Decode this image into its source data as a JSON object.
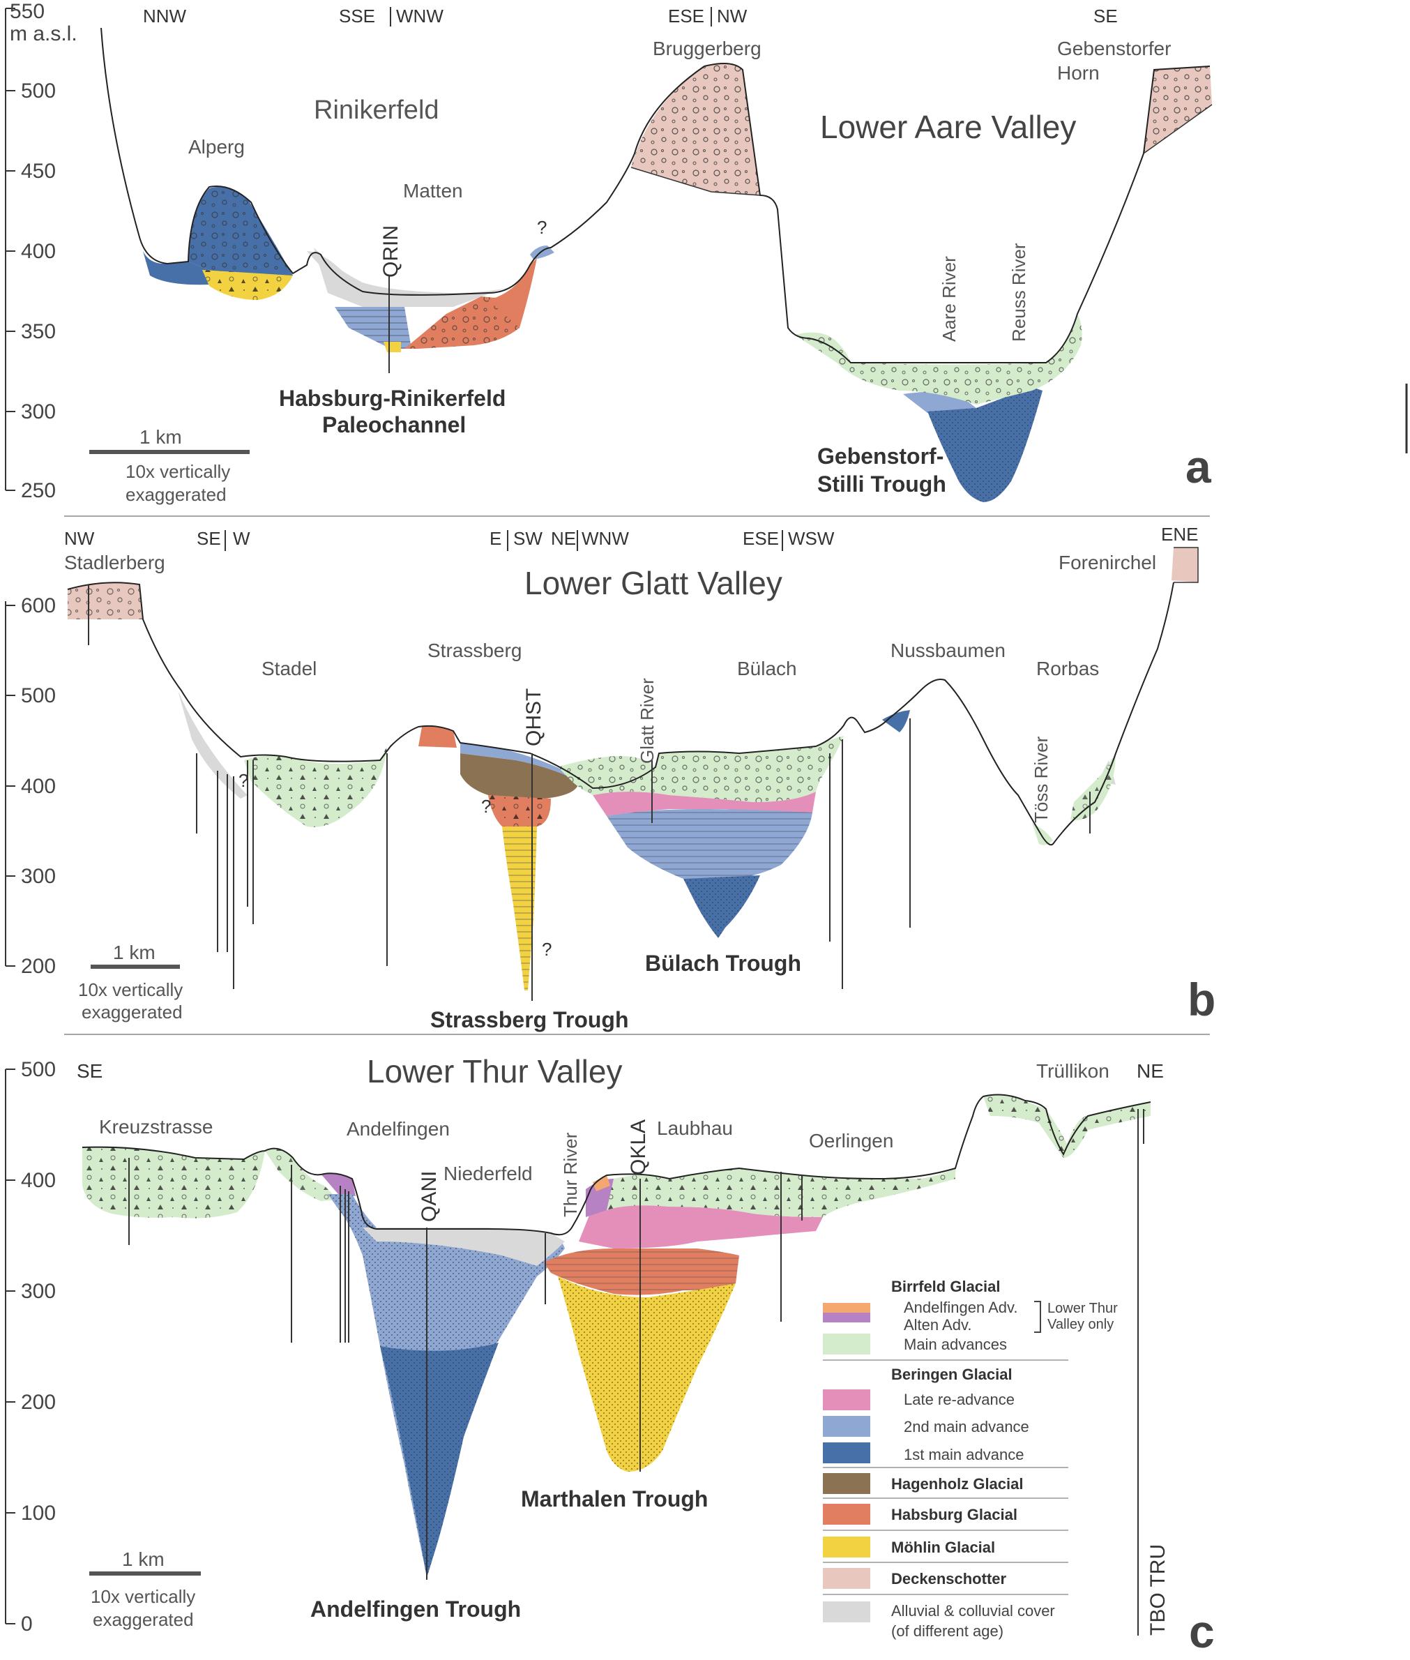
{
  "colors": {
    "birrfeld_andelfingen": "#f4a870",
    "birrfeld_alten": "#b782c4",
    "birrfeld_main": "#d4ebcc",
    "beringen_late": "#e38fba",
    "beringen_2nd": "#8ea8d3",
    "beringen_1st": "#4770a9",
    "hagenholz": "#8b7252",
    "habsburg": "#e07e5f",
    "mohlin": "#f3d241",
    "deckenschotter": "#e8c7be",
    "alluvial": "#d9d9d9"
  },
  "panel_a": {
    "label": "a",
    "title": "Lower Aare Valley",
    "y_unit": "m a.s.l.",
    "y_ticks": [
      "550",
      "500",
      "450",
      "400",
      "350",
      "300",
      "250"
    ],
    "directions": [
      "NNW",
      "SSE",
      "WNW",
      "ESE",
      "NW",
      "SE"
    ],
    "places": [
      "Alperg",
      "Rinikerfeld",
      "Matten",
      "Bruggerberg",
      "Gebenstorfer",
      "Horn"
    ],
    "rivers": [
      "Aare River",
      "Reuss River"
    ],
    "borehole": "QRIN",
    "query": "?",
    "trough_1_line1": "Habsburg-Rinikerfeld",
    "trough_1_line2": "Paleochannel",
    "trough_2_line1": "Gebenstorf-",
    "trough_2_line2": "Stilli Trough",
    "scale": "1 km",
    "exag_line1": "10x vertically",
    "exag_line2": "exaggerated"
  },
  "panel_b": {
    "label": "b",
    "title": "Lower Glatt Valley",
    "y_ticks": [
      "600",
      "500",
      "400",
      "300",
      "200"
    ],
    "directions": [
      "NW",
      "SE",
      "W",
      "E",
      "SW",
      "NE",
      "WNW",
      "ESE",
      "WSW",
      "ENE"
    ],
    "places": [
      "Stadlerberg",
      "Stadel",
      "Strassberg",
      "Bülach",
      "Nussbaumen",
      "Rorbas",
      "Forenirchel"
    ],
    "rivers": [
      "Glatt River",
      "Töss River"
    ],
    "borehole": "QHST",
    "query": "?",
    "trough_1": "Strassberg Trough",
    "trough_2": "Bülach Trough",
    "scale": "1 km",
    "exag_line1": "10x vertically",
    "exag_line2": "exaggerated"
  },
  "panel_c": {
    "label": "c",
    "title": "Lower Thur Valley",
    "y_ticks": [
      "500",
      "400",
      "300",
      "200",
      "100",
      "0"
    ],
    "directions": [
      "SE",
      "NE"
    ],
    "places": [
      "Kreuzstrasse",
      "Andelfingen",
      "Niederfeld",
      "Laubhau",
      "Oerlingen",
      "Trüllikon"
    ],
    "rivers": [
      "Thur River"
    ],
    "boreholes": [
      "QANI",
      "QKLA",
      "TBO TRU"
    ],
    "trough_1": "Andelfingen Trough",
    "trough_2": "Marthalen Trough",
    "scale": "1 km",
    "exag_line1": "10x vertically",
    "exag_line2": "exaggerated"
  },
  "legend": {
    "birrfeld": "Birrfeld Glacial",
    "andelfingen_adv": "Andelfingen Adv.",
    "alten_adv": "Alten Adv.",
    "lower_thur_note_1": "Lower Thur",
    "lower_thur_note_2": "Valley only",
    "main_adv": "Main advances",
    "beringen": "Beringen Glacial",
    "late_readv": "Late re-advance",
    "second_main": "2nd main advance",
    "first_main": "1st main advance",
    "hagenholz": "Hagenholz Glacial",
    "habsburg": "Habsburg Glacial",
    "mohlin": "Möhlin Glacial",
    "deckenschotter": "Deckenschotter",
    "alluvial_line1": "Alluvial & colluvial cover",
    "alluvial_line2": "(of different age)"
  }
}
